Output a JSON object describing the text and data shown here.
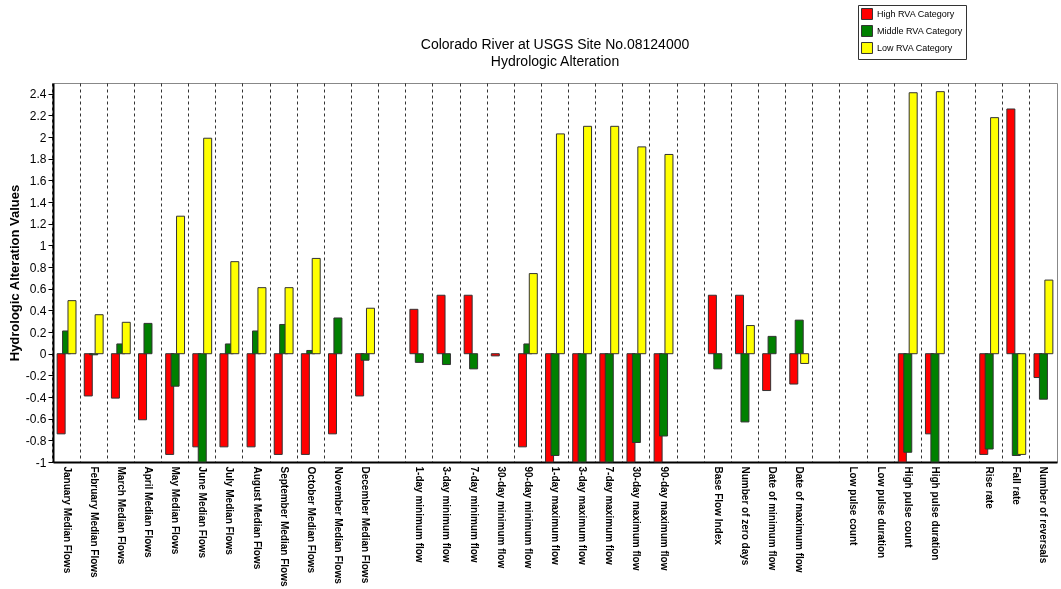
{
  "chart_data": {
    "type": "bar",
    "title": "Colorado River at USGS Site No.08124000",
    "subtitle": "Hydrologic Alteration",
    "ylabel": "Hydrologic Alteration Values",
    "categories": [
      "January Median Flows",
      "February Median Flows",
      "March Median Flows",
      "April Median Flows",
      "May Median Flows",
      "June Median Flows",
      "July Median Flows",
      "August Median Flows",
      "September Median Flows",
      "October Median Flows",
      "November Median Flows",
      "December Median Flows",
      null,
      "1-day minimum flow",
      "3-day minimum flow",
      "7-day minimum flow",
      "30-day minimum flow",
      "90-day minimum flow",
      "1-day maximum flow",
      "3-day maximum flow",
      "7-day maximum flow",
      "30-day maximum flow",
      "90-day maximum flow",
      null,
      "Base Flow Index",
      "Number of zero days",
      "Date of minimum flow",
      "Date of maximum flow",
      null,
      "Low pulse count",
      "Low pulse duration",
      "High pulse count",
      "High pulse duration",
      null,
      "Rise rate",
      "Fall rate",
      "Number of reversals"
    ],
    "series": [
      {
        "name": "High RVA Category",
        "color": "#ff0000",
        "values": [
          -0.74,
          -0.39,
          -0.41,
          -0.61,
          -0.93,
          -0.86,
          -0.86,
          -0.86,
          -0.93,
          -0.93,
          -0.74,
          -0.39,
          null,
          0.41,
          0.54,
          0.54,
          -0.02,
          -0.86,
          -1.0,
          -1.0,
          -1.0,
          -1.0,
          -1.0,
          null,
          0.54,
          0.54,
          -0.34,
          -0.28,
          null,
          0,
          0,
          -1.0,
          -0.74,
          null,
          -0.93,
          2.26,
          -0.22
        ]
      },
      {
        "name": "Middle RVA Category",
        "color": "#008000",
        "values": [
          0.21,
          -0.01,
          0.09,
          0.28,
          -0.3,
          -1.0,
          0.09,
          0.21,
          0.27,
          0.03,
          0.33,
          -0.06,
          null,
          -0.08,
          -0.1,
          -0.14,
          0,
          0.09,
          -0.94,
          -1.0,
          -1.0,
          -0.82,
          -0.76,
          null,
          -0.14,
          -0.63,
          0.16,
          0.31,
          null,
          0,
          0,
          -0.91,
          -1.0,
          null,
          -0.88,
          -0.94,
          -0.42
        ]
      },
      {
        "name": "Low RVA Category",
        "color": "#ffff00",
        "values": [
          0.49,
          0.36,
          0.29,
          0,
          1.27,
          1.99,
          0.85,
          0.61,
          0.61,
          0.88,
          0,
          0.42,
          null,
          0,
          0,
          0,
          0,
          0.74,
          2.03,
          2.1,
          2.1,
          1.91,
          1.84,
          null,
          0,
          0.26,
          0,
          -0.09,
          null,
          0,
          0,
          2.41,
          2.42,
          null,
          2.18,
          -0.93,
          0.68
        ]
      }
    ],
    "ylim": [
      -1,
      2.5
    ],
    "yticks": [
      -1,
      -0.8,
      -0.6,
      -0.4,
      -0.2,
      0,
      0.2,
      0.4,
      0.6,
      0.8,
      1,
      1.2,
      1.4,
      1.6,
      1.8,
      2,
      2.2,
      2.4
    ],
    "grid": "x",
    "legend": "top right"
  }
}
